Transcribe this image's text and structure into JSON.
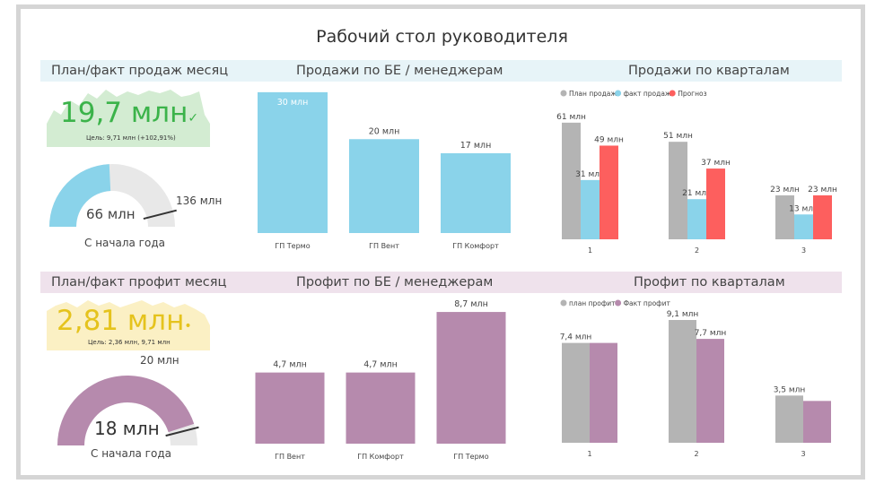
{
  "page_title": "Рабочий стол руководителя",
  "colors": {
    "sales_blue": "#8ad3ea",
    "profit_purple": "#b68aad",
    "plan_grey": "#b4b4b4",
    "forecast_red": "#fd5f5e",
    "kpi_green": "#3bb34a",
    "kpi_yellow": "#e5c31d",
    "gauge_track": "#e8e8e8"
  },
  "sales_section": {
    "kpi_title": "План/факт продаж месяц",
    "kpi_value": "19,7 млн",
    "kpi_target": "Цель: 9,71 млн (+102,91%)",
    "gauge_value": "66 млн",
    "gauge_max": "136 млн",
    "gauge_caption": "С начала года",
    "be_title": "Продажи по БЕ / менеджерам",
    "quarters_title": "Продажи по кварталам"
  },
  "profit_section": {
    "kpi_title": "План/факт профит месяц",
    "kpi_value": "2,81 млн",
    "kpi_target": "Цель: 2,36 млн, 9,71 млн",
    "gauge_value": "18 млн",
    "gauge_max": "20 млн",
    "gauge_caption": "С начала года",
    "be_title": "Профит по БЕ / менеджерам",
    "quarters_title": "Профит по кварталам"
  },
  "chart_data": [
    {
      "type": "gauge",
      "title": "С начала года",
      "value": 66,
      "max": 136,
      "target": 136,
      "unit": "млн",
      "value_label": "66 млн",
      "target_label": "136 млн",
      "color": "#8ad3ea"
    },
    {
      "type": "bar",
      "title": "Продажи по БЕ / менеджерам",
      "categories": [
        "ГП Термо",
        "ГП Вент",
        "ГП Комфорт"
      ],
      "values": [
        30,
        20,
        17
      ],
      "labels": [
        "30 млн",
        "20 млн",
        "17 млн"
      ],
      "ylim": [
        0,
        31
      ],
      "color": "#8ad3ea"
    },
    {
      "type": "bar",
      "title": "Продажи по кварталам",
      "legend": "top-left",
      "categories": [
        "1",
        "2",
        "3"
      ],
      "series": [
        {
          "name": "План продаж",
          "color": "#b4b4b4",
          "values": [
            61,
            51,
            23
          ],
          "labels": [
            "61 млн",
            "51 млн",
            "23 млн"
          ]
        },
        {
          "name": "факт продаж",
          "color": "#8ad3ea",
          "values": [
            31,
            21,
            13
          ],
          "labels": [
            "31 млн",
            "21 млн",
            "13 млн"
          ]
        },
        {
          "name": "Прогноз",
          "color": "#fd5f5e",
          "values": [
            49,
            37,
            23
          ],
          "labels": [
            "49 млн",
            "37 млн",
            "23 млн"
          ]
        }
      ],
      "ylim": [
        0,
        75
      ]
    },
    {
      "type": "gauge",
      "title": "С начала года",
      "value": 18,
      "max": 20,
      "target": 20,
      "unit": "млн",
      "value_label": "18 млн",
      "target_label": "20 млн",
      "color": "#b68aad"
    },
    {
      "type": "bar",
      "title": "Профит по БЕ / менеджерам",
      "categories": [
        "ГП Вент",
        "ГП Комфорт",
        "ГП Термо"
      ],
      "values": [
        4.7,
        4.7,
        8.7
      ],
      "labels": [
        "4,7 млн",
        "4,7 млн",
        "8,7 млн"
      ],
      "ylim": [
        0,
        9
      ],
      "color": "#b68aad"
    },
    {
      "type": "bar",
      "title": "Профит по кварталам",
      "legend": "top-left",
      "categories": [
        "1",
        "2",
        "3"
      ],
      "series": [
        {
          "name": "план профит",
          "color": "#b4b4b4",
          "values": [
            7.4,
            9.1,
            3.5
          ],
          "labels": [
            "7,4 млн",
            "9,1 млн",
            "3,5 млн"
          ]
        },
        {
          "name": "Факт профит",
          "color": "#b68aad",
          "values": [
            7.4,
            7.7,
            3.1
          ],
          "labels": [
            "",
            "7,7 млн",
            ""
          ]
        }
      ],
      "ylim": [
        0,
        9.5
      ]
    }
  ]
}
